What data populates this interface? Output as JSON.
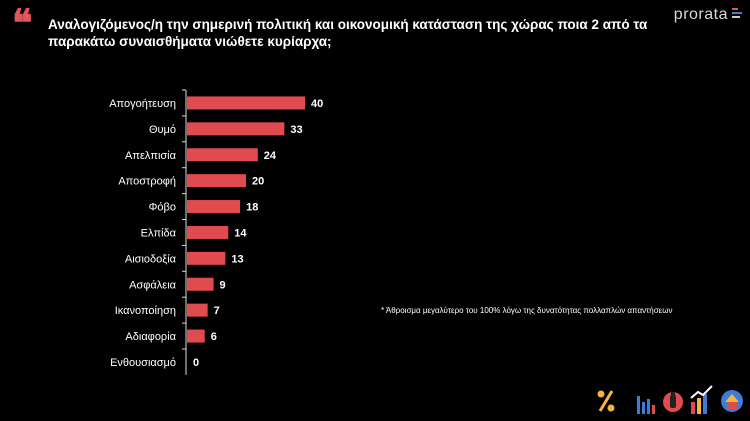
{
  "header": {
    "quote_mark": "❝",
    "question": "Αναλογιζόμενος/η την σημερινή πολιτική και οικονομική κατάσταση της χώρας ποια 2 από τα παρακάτω συναισθήματα νιώθετε κυρίαρχα;",
    "brand": "prorata"
  },
  "footnote": "* Άθροισμα μεγαλύτερο του 100% λόγω της δυνατότητας πολλαπλών απαντήσεων",
  "footer_icons": [
    "percent-icon",
    "bar-chart-icon",
    "fire-extinguisher-icon",
    "trend-chart-icon",
    "house-icon"
  ],
  "colors": {
    "bar": "#e04b4f",
    "accent": "#e0575a",
    "background": "#000000"
  },
  "chart_data": {
    "type": "bar",
    "orientation": "horizontal",
    "categories": [
      "Απογοήτευση",
      "Θυμό",
      "Απελπισία",
      "Αποστροφή",
      "Φόβο",
      "Ελπίδα",
      "Αισιοδοξία",
      "Ασφάλεια",
      "Ικανοποίηση",
      "Αδιαφορία",
      "Ενθουσιασμό"
    ],
    "values": [
      40,
      33,
      24,
      20,
      18,
      14,
      13,
      9,
      7,
      6,
      0
    ],
    "xlim": [
      0,
      40
    ],
    "grid": false,
    "legend": "none"
  }
}
